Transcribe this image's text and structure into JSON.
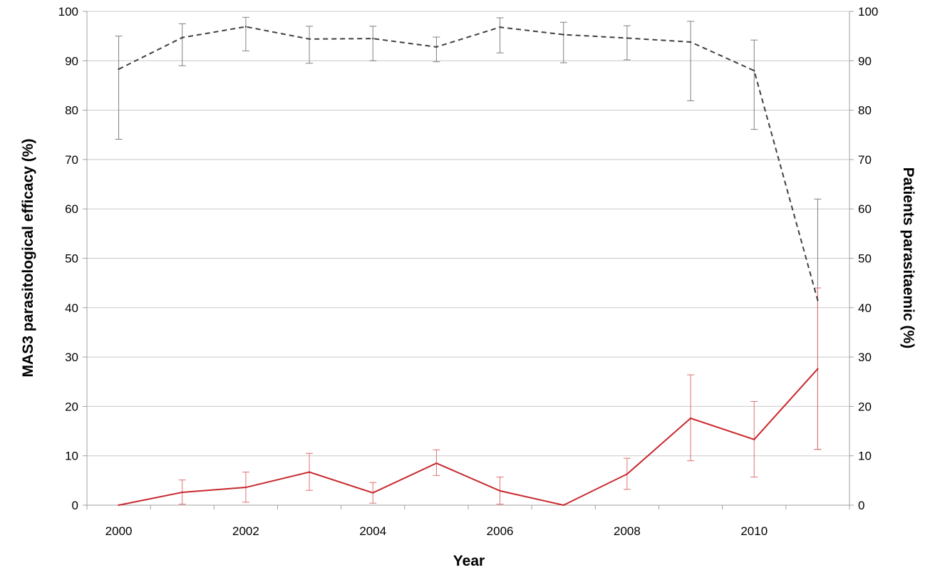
{
  "chart_data": {
    "type": "line",
    "title": "",
    "xlabel": "Year",
    "ylabel_left": "MAS3 parasitological efficacy (%)",
    "ylabel_right": "Patients parasitaemic (%)",
    "x": [
      2000,
      2001,
      2002,
      2003,
      2004,
      2005,
      2006,
      2007,
      2008,
      2009,
      2010,
      2011
    ],
    "x_ticks": [
      "2000",
      "2002",
      "2004",
      "2006",
      "2008",
      "2010"
    ],
    "y_ticks": [
      "0",
      "10",
      "20",
      "30",
      "40",
      "50",
      "60",
      "70",
      "80",
      "90",
      "100"
    ],
    "xlim": [
      2000,
      2011
    ],
    "ylim": [
      0,
      100
    ],
    "grid": "horizontal",
    "legend": "none",
    "series": [
      {
        "axis": "left",
        "style": "dashed",
        "color": "#404040",
        "error_color": "#808080",
        "values": [
          88.3,
          94.7,
          96.9,
          94.4,
          94.5,
          92.8,
          96.8,
          95.3,
          94.6,
          93.8,
          88.0,
          41.5
        ],
        "error_low": [
          74.1,
          89.0,
          92.0,
          89.5,
          90.0,
          89.8,
          91.6,
          89.6,
          90.2,
          81.9,
          76.1,
          11.3
        ],
        "error_high": [
          95.0,
          97.5,
          98.8,
          97.0,
          97.0,
          94.8,
          98.7,
          97.8,
          97.1,
          98.0,
          94.2,
          62.0
        ]
      },
      {
        "axis": "right",
        "style": "solid",
        "color": "#c8282d",
        "error_color": "#e07070",
        "values": [
          0.0,
          2.6,
          3.6,
          6.7,
          2.5,
          8.5,
          2.9,
          0.0,
          6.3,
          17.6,
          13.3,
          27.6
        ],
        "error_low": [
          0.0,
          0.2,
          0.6,
          3.0,
          0.4,
          6.0,
          0.2,
          0.0,
          3.2,
          9.0,
          5.7,
          11.3
        ],
        "error_high": [
          0.0,
          5.1,
          6.7,
          10.5,
          4.6,
          11.2,
          5.7,
          0.0,
          9.5,
          26.4,
          21.0,
          44.0
        ]
      }
    ]
  }
}
